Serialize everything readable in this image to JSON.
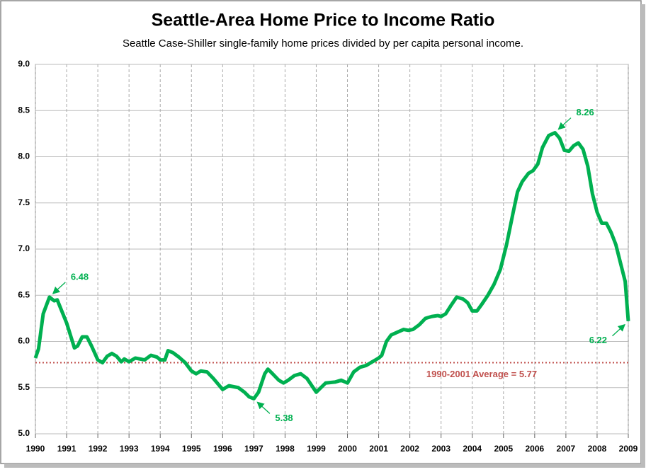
{
  "chart_data": {
    "type": "line",
    "title": "Seattle-Area Home Price to Income Ratio",
    "subtitle": "Seattle Case-Shiller single-family home prices divided by per capita personal income.",
    "series": [
      {
        "name": "Price to Income Ratio",
        "color": "#00b050",
        "x": [
          1990.0,
          1990.1,
          1990.25,
          1990.45,
          1990.6,
          1990.7,
          1991.0,
          1991.25,
          1991.35,
          1991.5,
          1991.65,
          1991.8,
          1992.0,
          1992.15,
          1992.3,
          1992.45,
          1992.6,
          1992.75,
          1992.85,
          1993.0,
          1993.2,
          1993.5,
          1993.7,
          1993.9,
          1994.0,
          1994.15,
          1994.25,
          1994.4,
          1994.6,
          1994.8,
          1995.0,
          1995.15,
          1995.3,
          1995.5,
          1995.7,
          1996.0,
          1996.2,
          1996.5,
          1996.7,
          1996.85,
          1997.0,
          1997.15,
          1997.35,
          1997.45,
          1997.6,
          1997.8,
          1997.95,
          1998.1,
          1998.3,
          1998.5,
          1998.7,
          1998.9,
          1999.0,
          1999.15,
          1999.3,
          1999.6,
          1999.8,
          2000.0,
          2000.2,
          2000.4,
          2000.6,
          2000.8,
          2001.0,
          2001.1,
          2001.25,
          2001.4,
          2001.6,
          2001.8,
          2001.95,
          2002.1,
          2002.3,
          2002.5,
          2002.7,
          2002.9,
          2003.0,
          2003.15,
          2003.3,
          2003.5,
          2003.7,
          2003.85,
          2004.0,
          2004.15,
          2004.3,
          2004.5,
          2004.7,
          2004.9,
          2005.1,
          2005.3,
          2005.45,
          2005.6,
          2005.8,
          2005.95,
          2006.1,
          2006.25,
          2006.45,
          2006.65,
          2006.8,
          2006.95,
          2007.1,
          2007.25,
          2007.4,
          2007.55,
          2007.7,
          2007.85,
          2008.0,
          2008.15,
          2008.3,
          2008.45,
          2008.6,
          2008.75,
          2008.9,
          2009.0
        ],
        "values": [
          5.82,
          5.92,
          6.3,
          6.48,
          6.44,
          6.45,
          6.2,
          5.93,
          5.95,
          6.05,
          6.05,
          5.95,
          5.8,
          5.77,
          5.84,
          5.87,
          5.84,
          5.78,
          5.81,
          5.78,
          5.82,
          5.8,
          5.85,
          5.83,
          5.8,
          5.8,
          5.9,
          5.88,
          5.83,
          5.77,
          5.68,
          5.65,
          5.68,
          5.67,
          5.6,
          5.48,
          5.52,
          5.5,
          5.45,
          5.4,
          5.38,
          5.45,
          5.65,
          5.7,
          5.65,
          5.58,
          5.55,
          5.58,
          5.63,
          5.65,
          5.6,
          5.5,
          5.45,
          5.5,
          5.55,
          5.56,
          5.58,
          5.55,
          5.67,
          5.72,
          5.74,
          5.78,
          5.82,
          5.85,
          6.0,
          6.07,
          6.1,
          6.13,
          6.12,
          6.13,
          6.18,
          6.25,
          6.27,
          6.28,
          6.27,
          6.3,
          6.38,
          6.48,
          6.46,
          6.42,
          6.33,
          6.33,
          6.4,
          6.5,
          6.62,
          6.78,
          7.05,
          7.38,
          7.62,
          7.73,
          7.82,
          7.85,
          7.92,
          8.1,
          8.23,
          8.26,
          8.2,
          8.07,
          8.06,
          8.12,
          8.15,
          8.08,
          7.9,
          7.6,
          7.4,
          7.28,
          7.28,
          7.18,
          7.05,
          6.85,
          6.65,
          6.22
        ]
      }
    ],
    "average": {
      "value": 5.77,
      "label": "1990-2001 Average = 5.77",
      "color": "#c0504d"
    },
    "annotations": [
      {
        "text": "6.48",
        "x": 1990.45,
        "y": 6.48
      },
      {
        "text": "5.38",
        "x": 1997.0,
        "y": 5.38
      },
      {
        "text": "8.26",
        "x": 2006.65,
        "y": 8.26
      },
      {
        "text": "6.22",
        "x": 2009.0,
        "y": 6.22
      }
    ],
    "xlim": [
      1990,
      2009
    ],
    "xticks": [
      1990,
      1991,
      1992,
      1993,
      1994,
      1995,
      1996,
      1997,
      1998,
      1999,
      2000,
      2001,
      2002,
      2003,
      2004,
      2005,
      2006,
      2007,
      2008,
      2009
    ],
    "ylim": [
      5,
      9
    ],
    "yticks": [
      {
        "value": 5,
        "label": "5.0"
      },
      5.5,
      {
        "value": 6,
        "label": "6.0"
      },
      6.5,
      {
        "value": 7,
        "label": "7.0"
      },
      7.5,
      {
        "value": 8,
        "label": "8.0"
      },
      8.5,
      {
        "value": 9,
        "label": "9.0"
      }
    ],
    "grid": true
  }
}
